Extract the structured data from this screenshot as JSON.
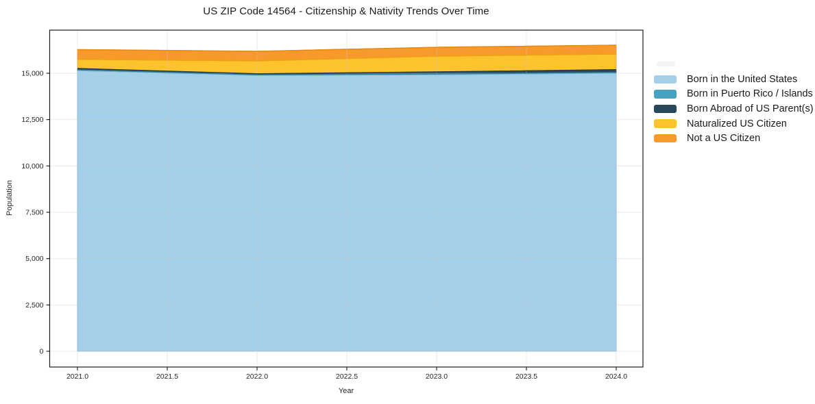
{
  "title": "US ZIP Code 14564 - Citizenship & Nativity Trends Over Time",
  "axes": {
    "xlabel": "Year",
    "ylabel": "Population",
    "x_tick_labels": [
      "2021.0",
      "2021.5",
      "2022.0",
      "2022.5",
      "2023.0",
      "2023.5",
      "2024.0"
    ],
    "y_tick_labels": [
      "0",
      "2,500",
      "5,000",
      "7,500",
      "10,000",
      "12,500",
      "15,000"
    ]
  },
  "chart_data": {
    "type": "area",
    "stacked": true,
    "title": "US ZIP Code 14564 - Citizenship & Nativity Trends Over Time",
    "xlabel": "Year",
    "ylabel": "Population",
    "x": [
      2021,
      2022,
      2023,
      2024
    ],
    "series": [
      {
        "name": "Born in the United States",
        "fill": "#a3cfe8",
        "edge": "#7eb9d6",
        "values": [
          15150,
          14890,
          14930,
          15010
        ]
      },
      {
        "name": "Born in Puerto Rico / Islands",
        "fill": "#45a3bf",
        "edge": "#34869f",
        "values": [
          30,
          25,
          25,
          30
        ]
      },
      {
        "name": "Born Abroad of US Parent(s)",
        "fill": "#28495c",
        "edge": "#1d3a4a",
        "values": [
          80,
          60,
          120,
          155
        ]
      },
      {
        "name": "Naturalized US Citizen",
        "fill": "#fdc32e",
        "edge": "#eca414",
        "values": [
          490,
          690,
          850,
          840
        ]
      },
      {
        "name": "Not a US Citizen",
        "fill": "#f8992b",
        "edge": "#e8860f",
        "values": [
          530,
          520,
          480,
          480
        ]
      }
    ],
    "x_tick_values": [
      2021.0,
      2021.5,
      2022.0,
      2022.5,
      2023.0,
      2023.5,
      2024.0
    ],
    "y_tick_values": [
      0,
      2500,
      5000,
      7500,
      10000,
      12500,
      15000
    ],
    "xlim": [
      2020.84,
      2024.15
    ],
    "ylim": [
      -850,
      17330
    ],
    "grid": true,
    "legend_position": "right",
    "colors": {
      "grid": "#e9e9e9",
      "axis": "#1a1a1a",
      "tick_label": "#262626",
      "background": "#ffffff"
    }
  }
}
